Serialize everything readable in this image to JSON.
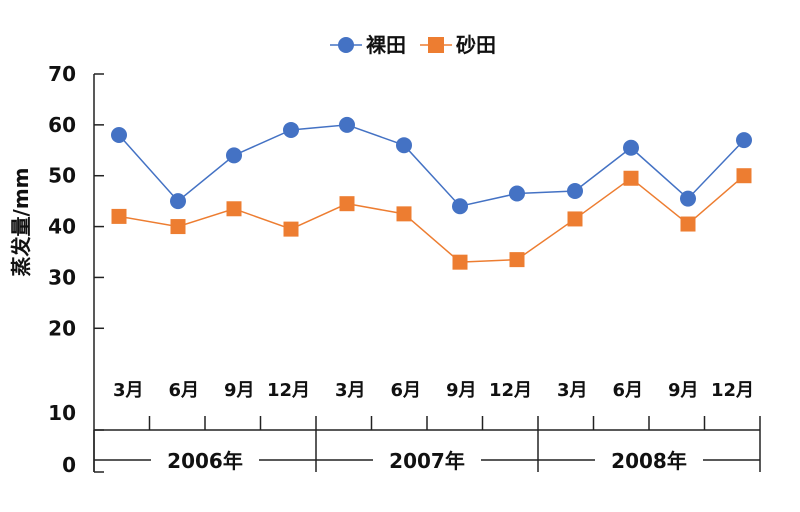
{
  "chart_data": {
    "type": "line",
    "title": "",
    "ylabel": "蒸发量/mm",
    "xlabel": "",
    "ylim": [
      0,
      70
    ],
    "yticks": [
      "0",
      "10",
      "20",
      "30",
      "40",
      "50",
      "60",
      "70"
    ],
    "legend_position": "top-center",
    "months": [
      "3月",
      "6月",
      "9月",
      "12月",
      "3月",
      "6月",
      "9月",
      "12月",
      "3月",
      "6月",
      "9月",
      "12月"
    ],
    "years": [
      "2006年",
      "2007年",
      "2008年"
    ],
    "series": [
      {
        "name": "裸田",
        "color": "#4472C4",
        "marker": "circle",
        "values": [
          58,
          45,
          54,
          59,
          60,
          56,
          44,
          46.5,
          47,
          55.5,
          45.5,
          57
        ]
      },
      {
        "name": "砂田",
        "color": "#ED7D31",
        "marker": "square",
        "values": [
          42,
          40,
          43.5,
          39.5,
          44.5,
          42.5,
          33,
          33.5,
          41.5,
          49.5,
          40.5,
          50
        ]
      }
    ],
    "grid": false
  }
}
